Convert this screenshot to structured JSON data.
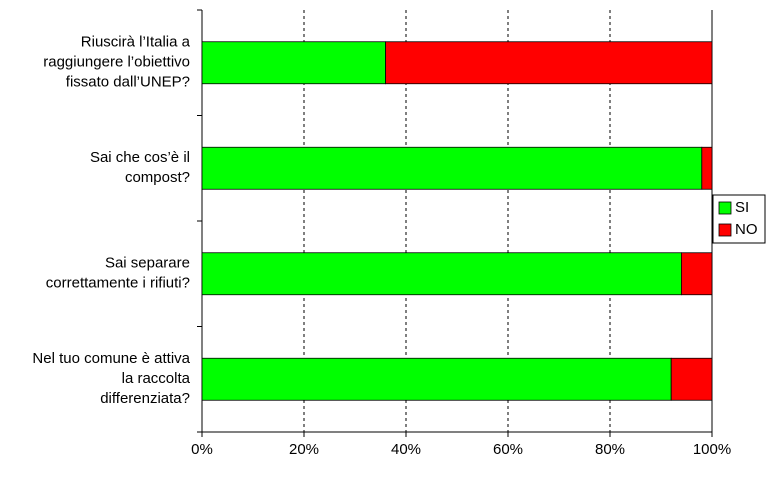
{
  "chart_data": {
    "type": "stacked-barh",
    "categories": [
      [
        "Riuscirà l’Italia a",
        "raggiungere l’obiettivo",
        "fissato dall’UNEP?"
      ],
      [
        "Sai che cos’è il",
        "compost?"
      ],
      [
        "Sai separare",
        "correttamente i rifiuti?"
      ],
      [
        "Nel tuo comune è attiva",
        "la raccolta",
        "differenziata?"
      ]
    ],
    "series": [
      {
        "name": "SI",
        "color": "#00ff00",
        "values": [
          36,
          98,
          94,
          92
        ]
      },
      {
        "name": "NO",
        "color": "#ff0000",
        "values": [
          64,
          2,
          6,
          8
        ]
      }
    ],
    "xlim": [
      0,
      100
    ],
    "xticks": [
      {
        "value": 0,
        "label": "0%"
      },
      {
        "value": 20,
        "label": "20%"
      },
      {
        "value": 40,
        "label": "40%"
      },
      {
        "value": 60,
        "label": "60%"
      },
      {
        "value": 80,
        "label": "80%"
      },
      {
        "value": 100,
        "label": "100%"
      }
    ],
    "grid": true,
    "legend": "right"
  }
}
